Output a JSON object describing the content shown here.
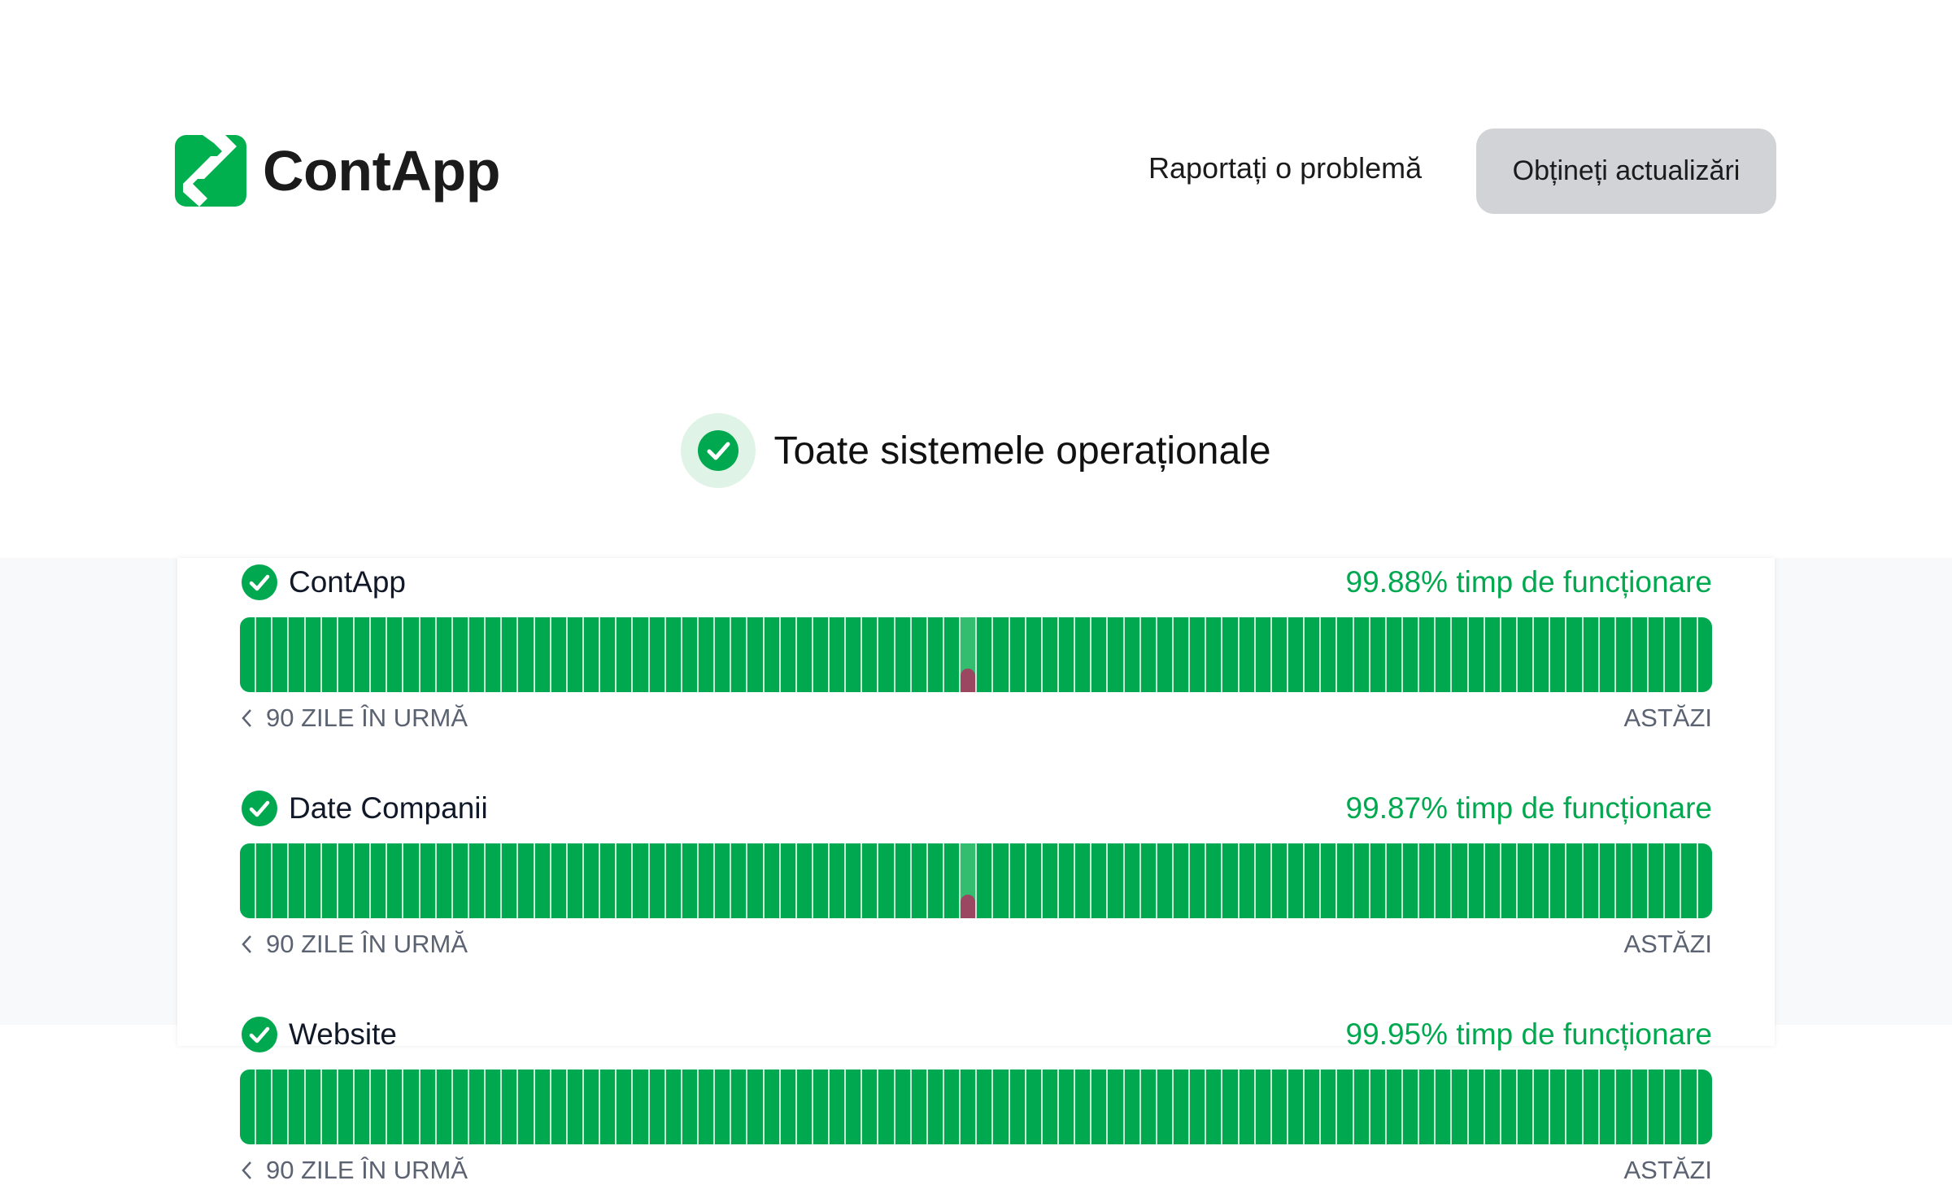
{
  "header": {
    "brand": "ContApp",
    "report_link": "Raportați o problemă",
    "updates_button": "Obțineți actualizări"
  },
  "status": {
    "text": "Toate sistemele operaționale",
    "icon": "check-circle-icon"
  },
  "colors": {
    "brand": "#00a94f",
    "operational": "#00a94f",
    "partial": "#33bd6f",
    "incident": "#9b4761"
  },
  "components": [
    {
      "name": "ContApp",
      "uptime": "99.88% timp de funcționare",
      "days": 90,
      "incident_days": [
        44
      ],
      "from_label": "90 ZILE ÎN URMĂ",
      "to_label": "ASTĂZI"
    },
    {
      "name": "Date Companii",
      "uptime": "99.87% timp de funcționare",
      "days": 90,
      "incident_days": [
        44
      ],
      "from_label": "90 ZILE ÎN URMĂ",
      "to_label": "ASTĂZI"
    },
    {
      "name": "Website",
      "uptime": "99.95% timp de funcționare",
      "days": 90,
      "incident_days": [],
      "from_label": "90 ZILE ÎN URMĂ",
      "to_label": "ASTĂZI"
    }
  ]
}
